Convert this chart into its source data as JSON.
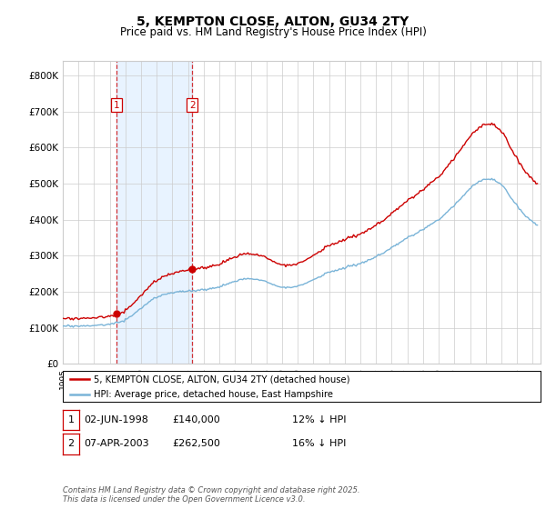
{
  "title": "5, KEMPTON CLOSE, ALTON, GU34 2TY",
  "subtitle": "Price paid vs. HM Land Registry's House Price Index (HPI)",
  "ylabel_ticks": [
    "£0",
    "£100K",
    "£200K",
    "£300K",
    "£400K",
    "£500K",
    "£600K",
    "£700K",
    "£800K"
  ],
  "ytick_values": [
    0,
    100000,
    200000,
    300000,
    400000,
    500000,
    600000,
    700000,
    800000
  ],
  "ylim": [
    0,
    840000
  ],
  "xlim_start": 1995.0,
  "xlim_end": 2025.5,
  "hpi_color": "#7ab4d8",
  "price_color": "#cc0000",
  "sale1_date": 1998.42,
  "sale1_price": 140000,
  "sale2_date": 2003.27,
  "sale2_price": 262500,
  "legend_label1": "5, KEMPTON CLOSE, ALTON, GU34 2TY (detached house)",
  "legend_label2": "HPI: Average price, detached house, East Hampshire",
  "table_row1": [
    "1",
    "02-JUN-1998",
    "£140,000",
    "12% ↓ HPI"
  ],
  "table_row2": [
    "2",
    "07-APR-2003",
    "£262,500",
    "16% ↓ HPI"
  ],
  "footer": "Contains HM Land Registry data © Crown copyright and database right 2025.\nThis data is licensed under the Open Government Licence v3.0.",
  "background_color": "#ffffff",
  "grid_color": "#cccccc",
  "shaded_region_color": "#ddeeff"
}
